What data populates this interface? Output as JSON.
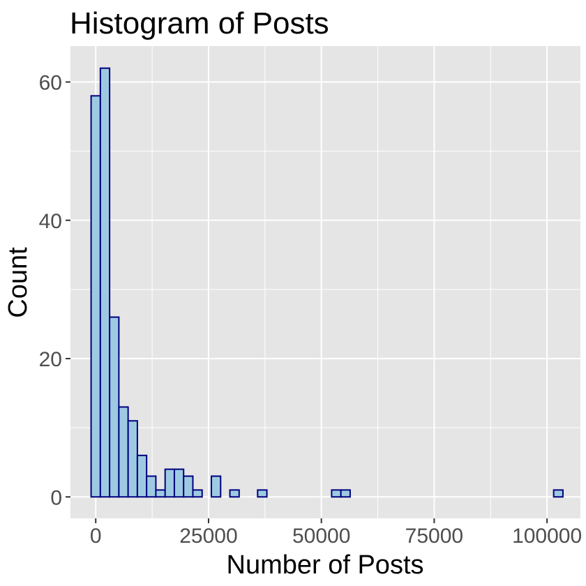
{
  "chart_data": {
    "type": "bar",
    "subtype": "histogram",
    "title": "Histogram of Posts",
    "xlabel": "Number of Posts",
    "ylabel": "Count",
    "xlim": [
      -5600,
      107400
    ],
    "ylim": [
      -3.1,
      65.2
    ],
    "xticks": [
      0,
      25000,
      50000,
      75000,
      100000
    ],
    "xtick_labels": [
      "0",
      "25000",
      "50000",
      "75000",
      "100000"
    ],
    "yticks": [
      0,
      20,
      40,
      60
    ],
    "ytick_labels": [
      "0",
      "20",
      "40",
      "60"
    ],
    "grid": true,
    "legend": "none",
    "bin_width": 2050,
    "first_bin_start": -1025,
    "values": [
      58,
      62,
      26,
      13,
      11,
      6,
      3,
      1,
      4,
      4,
      3,
      1,
      0,
      3,
      0,
      1,
      0,
      0,
      1,
      0,
      0,
      0,
      0,
      0,
      0,
      0,
      1,
      1,
      0,
      0,
      0,
      0,
      0,
      0,
      0,
      0,
      0,
      0,
      0,
      0,
      0,
      0,
      0,
      0,
      0,
      0,
      0,
      0,
      0,
      0,
      1
    ],
    "colors": {
      "fill": "#9ecae1",
      "outline": "#000080",
      "panel": "#e5e5e5",
      "grid": "#ffffff"
    }
  }
}
